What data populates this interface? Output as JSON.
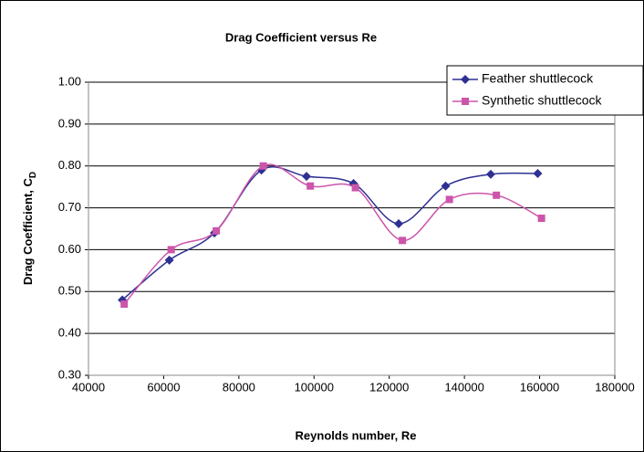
{
  "chart_data": {
    "type": "line",
    "title": "Drag Coefficient versus Re",
    "x_label": "Reynolds number, Re",
    "y_label": "Drag Coefficient, C",
    "y_label_subscript": "D",
    "series": [
      {
        "name": "Feather shuttlecock",
        "color": "#2e3192",
        "marker": "diamond",
        "x": [
          49000,
          61500,
          73500,
          86000,
          98000,
          110500,
          122500,
          135000,
          147000,
          159500
        ],
        "values": [
          0.48,
          0.575,
          0.64,
          0.79,
          0.775,
          0.758,
          0.662,
          0.752,
          0.78,
          0.782
        ]
      },
      {
        "name": "Synthetic shuttlecock",
        "color": "#cc55aa",
        "marker": "square",
        "x": [
          49500,
          62000,
          74000,
          86500,
          99000,
          111000,
          123500,
          136000,
          148500,
          160500
        ],
        "values": [
          0.47,
          0.6,
          0.645,
          0.8,
          0.752,
          0.748,
          0.622,
          0.72,
          0.73,
          0.675
        ]
      }
    ],
    "xlim": [
      40000,
      180000
    ],
    "xticks": [
      40000,
      60000,
      80000,
      100000,
      120000,
      140000,
      160000,
      180000
    ],
    "ylim": [
      0.3,
      1.0
    ],
    "yticks": [
      {
        "value": 0.3,
        "label": "0.30"
      },
      {
        "value": 0.4,
        "label": "0.40"
      },
      {
        "value": 0.5,
        "label": "0.50"
      },
      {
        "value": 0.6,
        "label": "0.60"
      },
      {
        "value": 0.7,
        "label": "0.70"
      },
      {
        "value": 0.8,
        "label": "0.80"
      },
      {
        "value": 0.9,
        "label": "0.90"
      },
      {
        "value": 1.0,
        "label": "1.00"
      }
    ],
    "grid": true,
    "smooth": true,
    "legend": "top-right"
  }
}
